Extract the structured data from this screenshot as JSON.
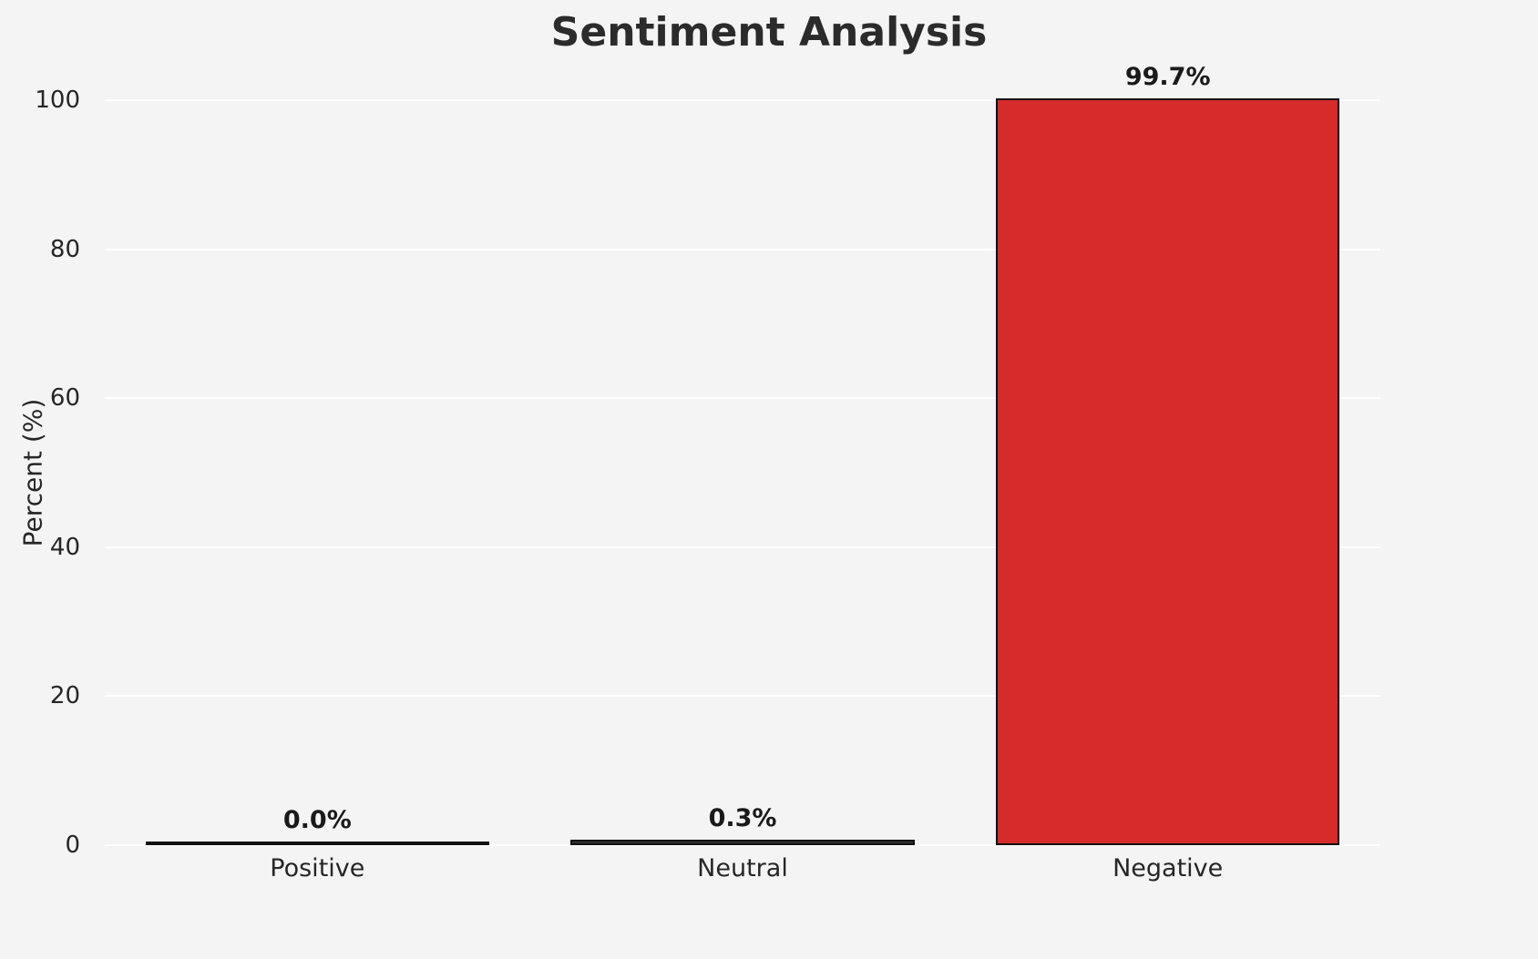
{
  "chart_data": {
    "type": "bar",
    "title": "Sentiment Analysis",
    "xlabel": "",
    "ylabel": "Percent (%)",
    "categories": [
      "Positive",
      "Neutral",
      "Negative"
    ],
    "values": [
      0.0,
      0.3,
      99.7
    ],
    "value_labels": [
      "0.0%",
      "0.3%",
      "99.7%"
    ],
    "ylim": [
      0,
      100
    ],
    "yticks": [
      0,
      20,
      40,
      60,
      80,
      100
    ],
    "grid": true,
    "legend": "none",
    "bar_colors": [
      "#cfcfcf",
      "#333333",
      "#d62b2b"
    ],
    "edge_color": "#111111",
    "background": "#f4f4f5",
    "gridline_color": "#ffffff"
  }
}
